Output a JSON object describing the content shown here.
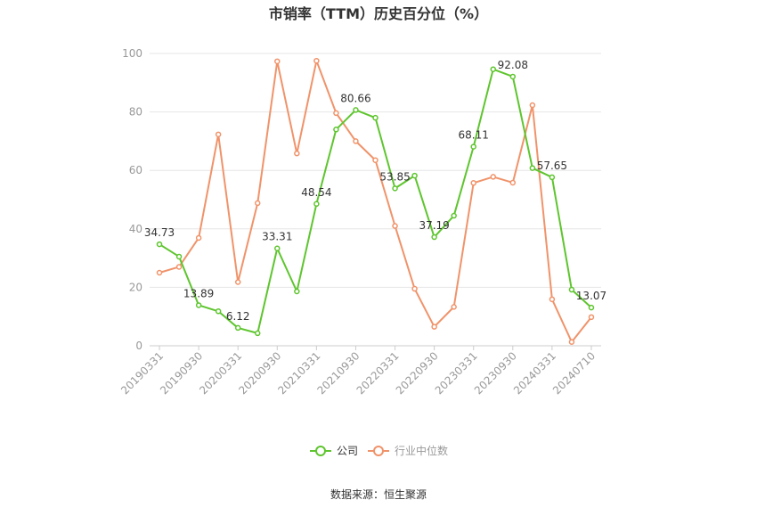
{
  "chart_data": {
    "type": "line",
    "title": "市销率（TTM）历史百分位（%）",
    "source": "数据来源：恒生聚源",
    "xlabel": "",
    "ylabel": "",
    "ylim": [
      0,
      100
    ],
    "yticks": [
      "0",
      "20",
      "40",
      "60",
      "80",
      "100"
    ],
    "grid": true,
    "legend_position": "bottom",
    "x_tick_labels": [
      "20190331",
      "20190930",
      "20200331",
      "20200930",
      "20210331",
      "20210930",
      "20220331",
      "20220930",
      "20230331",
      "20230930",
      "20240331",
      "20240710"
    ],
    "x_tick_index": [
      0,
      2,
      4,
      6,
      8,
      10,
      12,
      14,
      16,
      18,
      20,
      22
    ],
    "series": [
      {
        "name": "公司",
        "color": "#5ec52e",
        "values": [
          34.73,
          30.5,
          13.89,
          11.8,
          6.12,
          4.3,
          33.31,
          18.6,
          48.54,
          74.0,
          80.66,
          78.0,
          53.85,
          58.2,
          37.19,
          44.5,
          68.11,
          94.6,
          92.08,
          60.8,
          57.65,
          19.2,
          13.07
        ],
        "labels": {
          "0": "34.73",
          "2": "13.89",
          "4": "6.12",
          "6": "33.31",
          "8": "48.54",
          "10": "80.66",
          "12": "53.85",
          "14": "37.19",
          "16": "68.11",
          "18": "92.08",
          "20": "57.65",
          "22": "13.07"
        }
      },
      {
        "name": "行业中位数",
        "color": "#f0936a",
        "values": [
          25.0,
          27.0,
          36.9,
          72.3,
          21.8,
          48.8,
          97.3,
          65.8,
          97.5,
          79.6,
          70.0,
          63.5,
          41.0,
          19.5,
          6.5,
          13.3,
          55.7,
          57.8,
          55.8,
          82.3,
          15.9,
          1.3,
          9.8
        ]
      }
    ]
  }
}
